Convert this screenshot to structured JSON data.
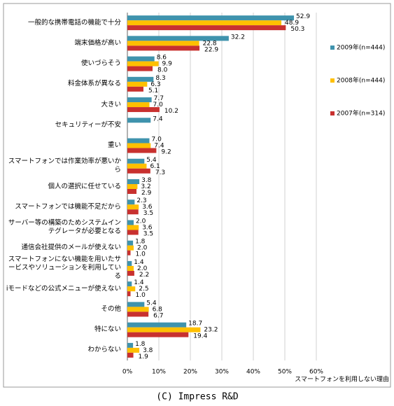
{
  "chart_data": {
    "type": "hbar",
    "x_label": "スマートフォンを利用しない理由",
    "footer": "(C) Impress R&D",
    "categories": [
      "一般的な携帯電話の機能で十分",
      "端末価格が高い",
      "使いづらそう",
      "料金体系が異なる",
      "大きい",
      "セキュリティーが不安",
      "重い",
      "スマートフォンでは作業効率が悪いから",
      "個人の選択に任せている",
      "スマートフォンでは機能不足だから",
      "サーバー等の構築のためシステムインテグレータが必要となる",
      "通信会社提供のメールが使えない",
      "スマートフォンにない機能を用いたサービスやソリューションを利用している",
      "iモードなどの公式メニューが使えない",
      "その他",
      "特にない",
      "わからない"
    ],
    "series": [
      {
        "name": "2009年(n=444)",
        "color": "#3f93ad",
        "values": [
          52.9,
          32.2,
          8.6,
          8.3,
          7.7,
          7.4,
          7.0,
          5.4,
          3.8,
          2.3,
          2.0,
          1.8,
          1.4,
          1.4,
          5.4,
          18.7,
          1.8
        ],
        "value_labels": [
          "52.9",
          "32.2",
          "8.6",
          "8.3",
          "7.7",
          "7.4",
          "7.0",
          "5.4",
          "3.8",
          "2.3",
          "2.0",
          "1.8",
          "1.4",
          "1.4",
          "5.4",
          "18.7",
          "1.8"
        ]
      },
      {
        "name": "2008年(n=444)",
        "color": "#ffc000",
        "values": [
          48.9,
          22.8,
          9.9,
          6.3,
          7.0,
          null,
          7.4,
          6.1,
          3.2,
          3.6,
          3.6,
          2.0,
          2.0,
          2.5,
          6.8,
          23.2,
          3.8
        ],
        "value_labels": [
          "48.9",
          "22.8",
          "9.9",
          "6.3",
          "7.0",
          null,
          "7.4",
          "6.1",
          "3.2",
          "3.6",
          "3.6",
          "2.0",
          "2.0",
          "2.5",
          "6.8",
          "23.2",
          "3.8"
        ]
      },
      {
        "name": "2007年(n=314)",
        "color": "#c8312f",
        "values": [
          50.3,
          22.9,
          8.0,
          5.1,
          10.2,
          null,
          9.2,
          7.3,
          2.9,
          3.5,
          3.5,
          1.0,
          2.2,
          1.0,
          6.7,
          19.4,
          1.9
        ],
        "value_labels": [
          "50.3",
          "22.9",
          "8.0",
          "5.1",
          "10.2",
          null,
          "9.2",
          "7.3",
          "2.9",
          "3.5",
          "3.5",
          "1.0",
          "2.2",
          "1.0",
          "6.7",
          "19.4",
          "1.9"
        ]
      }
    ],
    "xlim": [
      0,
      60
    ],
    "xticks": [
      {
        "value": 0,
        "label": "0%"
      },
      {
        "value": 10,
        "label": "10%"
      },
      {
        "value": 20,
        "label": "20%"
      },
      {
        "value": 30,
        "label": "30%"
      },
      {
        "value": 40,
        "label": "40%"
      },
      {
        "value": 50,
        "label": "50%"
      },
      {
        "value": 60,
        "label": "60%"
      }
    ],
    "grid": true,
    "legend": "right"
  }
}
